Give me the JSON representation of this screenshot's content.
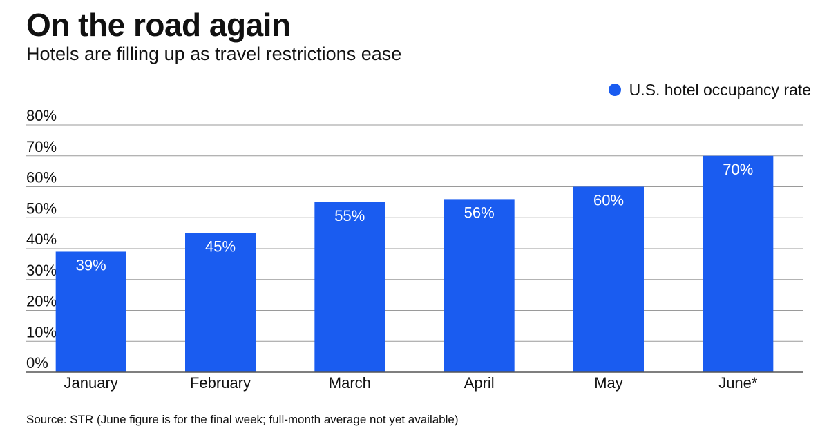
{
  "title": "On the road again",
  "subtitle": "Hotels are filling up as travel restrictions ease",
  "legend": {
    "label": "U.S. hotel occupancy rate"
  },
  "source": "Source: STR (June figure is for the final week; full-month average not yet available)",
  "colors": {
    "bar": "#1a5cf0",
    "grid": "#9a9a9a",
    "axis": "#555555"
  },
  "chart_data": {
    "type": "bar",
    "title": "On the road again",
    "subtitle": "Hotels are filling up as travel restrictions ease",
    "categories": [
      "January",
      "February",
      "March",
      "April",
      "May",
      "June*"
    ],
    "series": [
      {
        "name": "U.S. hotel occupancy rate",
        "values": [
          39,
          45,
          55,
          56,
          60,
          70
        ]
      }
    ],
    "data_labels": [
      "39%",
      "45%",
      "55%",
      "56%",
      "60%",
      "70%"
    ],
    "y_ticks": [
      0,
      10,
      20,
      30,
      40,
      50,
      60,
      70,
      80
    ],
    "y_tick_labels": [
      "0%",
      "10%",
      "20%",
      "30%",
      "40%",
      "50%",
      "60%",
      "70%",
      "80%"
    ],
    "ylim": [
      0,
      80
    ],
    "xlabel": "",
    "ylabel": "",
    "grid": true,
    "legend_position": "top-right"
  }
}
